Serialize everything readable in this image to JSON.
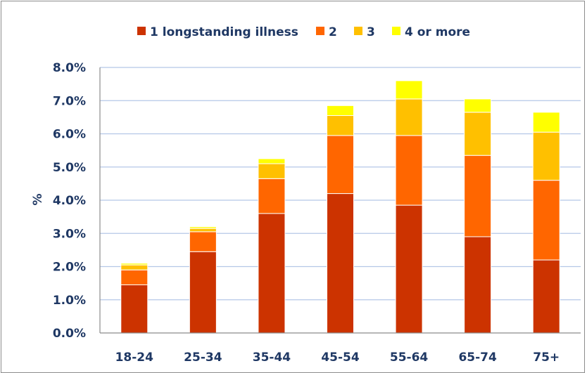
{
  "chart_data": {
    "type": "bar",
    "stacked": true,
    "categories": [
      "18-24",
      "25-34",
      "35-44",
      "45-54",
      "55-64",
      "65-74",
      "75+"
    ],
    "series": [
      {
        "name": "1 longstanding illness",
        "color": "#cc3300",
        "values": [
          1.45,
          2.45,
          3.6,
          4.2,
          3.85,
          2.9,
          2.2
        ]
      },
      {
        "name": "2",
        "color": "#ff6600",
        "values": [
          0.45,
          0.6,
          1.05,
          1.75,
          2.1,
          2.45,
          2.4
        ]
      },
      {
        "name": "3",
        "color": "#ffc000",
        "values": [
          0.15,
          0.1,
          0.45,
          0.6,
          1.1,
          1.3,
          1.45
        ]
      },
      {
        "name": "4 or more",
        "color": "#ffff00",
        "values": [
          0.05,
          0.05,
          0.15,
          0.3,
          0.55,
          0.4,
          0.6
        ]
      }
    ],
    "ylabel": "%",
    "xlabel": "",
    "ylim": [
      0,
      8
    ],
    "yticks": [
      "0.0%",
      "1.0%",
      "2.0%",
      "3.0%",
      "4.0%",
      "5.0%",
      "6.0%",
      "7.0%",
      "8.0%"
    ],
    "grid": true,
    "legend_position": "top"
  }
}
